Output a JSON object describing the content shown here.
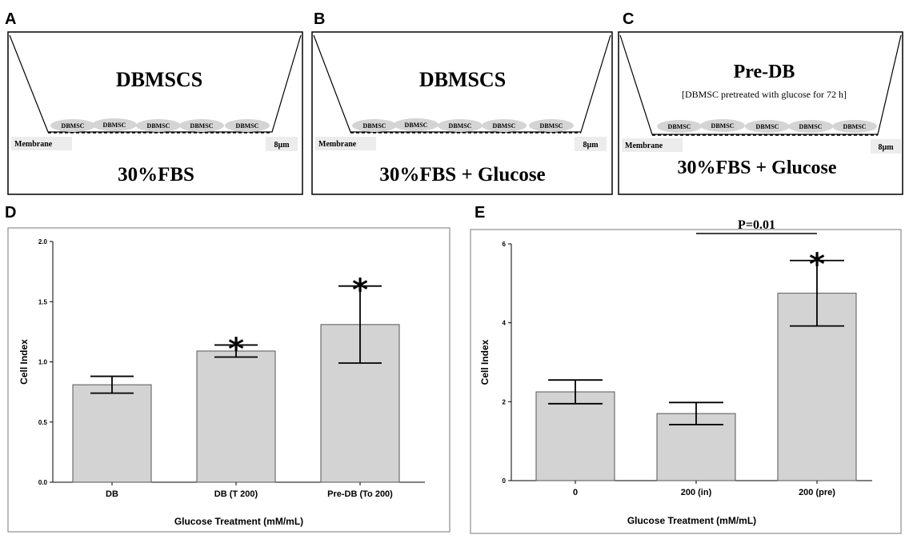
{
  "panels_top": [
    {
      "letter": "A",
      "title": "DBMSCS",
      "subtitle": "",
      "cells": [
        "DBMSC",
        "DBMSC",
        "DBMSC",
        "DBMSC",
        "DBMSC"
      ],
      "membrane": "Membrane",
      "pore": "8µm",
      "medium": "30%FBS"
    },
    {
      "letter": "B",
      "title": "DBMSCS",
      "subtitle": "",
      "cells": [
        "DBMSC",
        "DBMSC",
        "DBMSC",
        "DBMSC",
        "DBMSC"
      ],
      "membrane": "Membrane",
      "pore": "8µm",
      "medium": "30%FBS + Glucose"
    },
    {
      "letter": "C",
      "title": "Pre-DB",
      "subtitle": "[DBMSC pretreated with  glucose for 72 h]",
      "cells": [
        "DBMSC",
        "DBMSC",
        "DBMSC",
        "DBMSC",
        "DBMSC"
      ],
      "membrane": "Membrane",
      "pore": "8µm",
      "medium": "30%FBS + Glucose"
    }
  ],
  "chart_data": [
    {
      "panel": "D",
      "type": "bar",
      "categories": [
        "DB",
        "DB (T 200)",
        "Pre-DB (To 200)"
      ],
      "values": [
        0.81,
        1.09,
        1.31
      ],
      "errors": [
        0.07,
        0.05,
        0.32
      ],
      "significance": [
        "",
        "*",
        "*"
      ],
      "xlabel": "Glucose Treatment (mM/mL)",
      "ylabel": "Cell Index",
      "ylim": [
        0,
        2.0
      ],
      "yticks": [
        "0.0",
        "0.5",
        "1.0",
        "1.5",
        "2.0"
      ],
      "yticks_values": [
        0,
        0.5,
        1.0,
        1.5,
        2.0
      ],
      "bar_color": "#d3d3d3",
      "comparison": ""
    },
    {
      "panel": "E",
      "type": "bar",
      "categories": [
        "0",
        "200 (in)",
        "200 (pre)"
      ],
      "values": [
        2.25,
        1.7,
        4.75
      ],
      "errors": [
        0.3,
        0.28,
        0.83
      ],
      "significance": [
        "",
        "",
        "*"
      ],
      "xlabel": "Glucose Treatment (mM/mL)",
      "ylabel": "Cell Index",
      "ylim": [
        0,
        6
      ],
      "yticks": [
        "0",
        "2",
        "4",
        "6"
      ],
      "yticks_values": [
        0,
        2,
        4,
        6
      ],
      "bar_color": "#d3d3d3",
      "comparison": "P=0.01"
    }
  ]
}
